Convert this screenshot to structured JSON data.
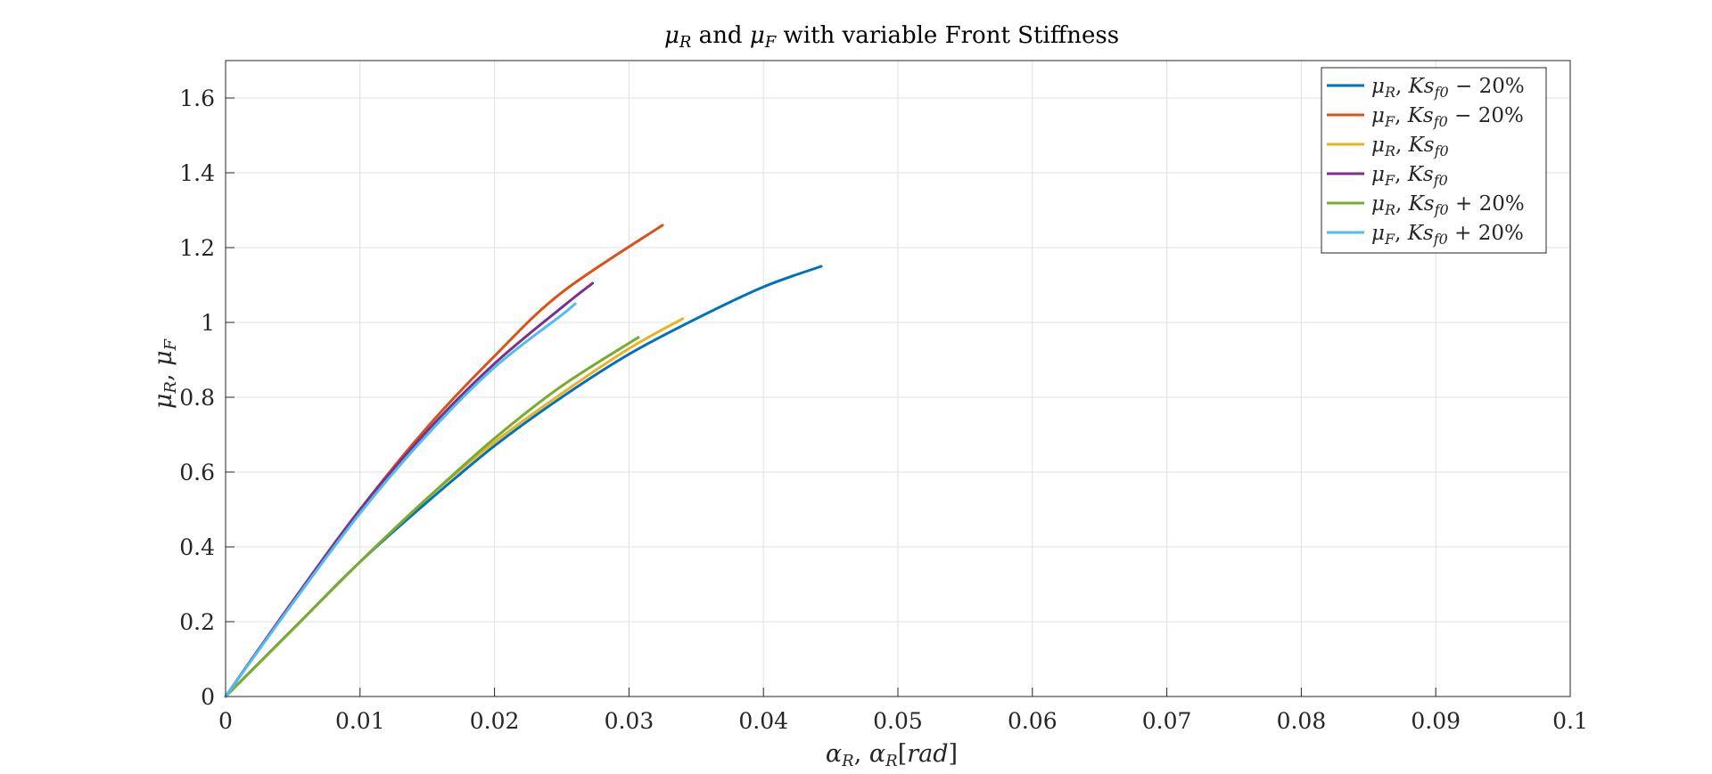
{
  "chart_data": {
    "type": "line",
    "title": "μR and μF with variable Front Stiffness",
    "xlabel": "αR, αR[rad]",
    "ylabel": "μR, μF",
    "xlim": [
      0,
      0.1
    ],
    "ylim": [
      0,
      1.7
    ],
    "xticks": [
      0,
      0.01,
      0.02,
      0.03,
      0.04,
      0.05,
      0.06,
      0.07,
      0.08,
      0.09,
      0.1
    ],
    "xtick_labels": [
      "0",
      "0.01",
      "0.02",
      "0.03",
      "0.04",
      "0.05",
      "0.06",
      "0.07",
      "0.08",
      "0.09",
      "0.1"
    ],
    "yticks": [
      0,
      0.2,
      0.4,
      0.6,
      0.8,
      1.0,
      1.2,
      1.4,
      1.6
    ],
    "ytick_labels": [
      "0",
      "0.2",
      "0.4",
      "0.6",
      "0.8",
      "1",
      "1.2",
      "1.4",
      "1.6"
    ],
    "grid": true,
    "legend_position": "top-right",
    "series": [
      {
        "name": "μR, Ksf0 − 20%",
        "color": "#0072BD",
        "x": [
          0,
          0.005,
          0.01,
          0.015,
          0.02,
          0.025,
          0.03,
          0.035,
          0.04,
          0.0443
        ],
        "y": [
          0,
          0.18,
          0.36,
          0.52,
          0.67,
          0.8,
          0.915,
          1.01,
          1.095,
          1.15
        ]
      },
      {
        "name": "μF, Ksf0 − 20%",
        "color": "#D95319",
        "x": [
          0,
          0.005,
          0.01,
          0.015,
          0.02,
          0.025,
          0.0325
        ],
        "y": [
          0,
          0.255,
          0.5,
          0.72,
          0.91,
          1.08,
          1.26
        ]
      },
      {
        "name": "μR, Ksf0",
        "color": "#EDB120",
        "x": [
          0,
          0.005,
          0.01,
          0.015,
          0.02,
          0.025,
          0.03,
          0.034
        ],
        "y": [
          0,
          0.18,
          0.36,
          0.53,
          0.68,
          0.81,
          0.93,
          1.01
        ]
      },
      {
        "name": "μF, Ksf0",
        "color": "#7E2F8E",
        "x": [
          0,
          0.005,
          0.01,
          0.015,
          0.02,
          0.025,
          0.0273
        ],
        "y": [
          0,
          0.255,
          0.5,
          0.71,
          0.89,
          1.04,
          1.105
        ]
      },
      {
        "name": "μR, Ksf0 + 20%",
        "color": "#77AC30",
        "x": [
          0,
          0.005,
          0.01,
          0.015,
          0.02,
          0.025,
          0.0307
        ],
        "y": [
          0,
          0.18,
          0.36,
          0.53,
          0.69,
          0.83,
          0.96
        ]
      },
      {
        "name": "μF, Ksf0 + 20%",
        "color": "#4DBEEE",
        "x": [
          0,
          0.005,
          0.01,
          0.015,
          0.02,
          0.025,
          0.026
        ],
        "y": [
          0,
          0.25,
          0.49,
          0.7,
          0.88,
          1.02,
          1.05
        ]
      }
    ]
  }
}
